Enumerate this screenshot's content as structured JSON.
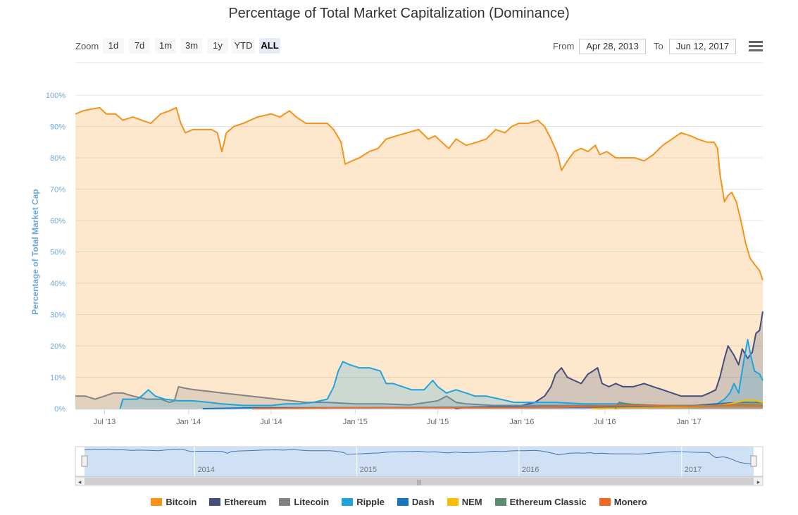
{
  "chart_data": {
    "type": "area",
    "title": "Percentage of Total Market Capitalization (Dominance)",
    "ylabel": "Percentage of Total Market Cap",
    "ylim": [
      0,
      100
    ],
    "yticks": [
      "0%",
      "10%",
      "20%",
      "30%",
      "40%",
      "50%",
      "60%",
      "70%",
      "80%",
      "90%",
      "100%"
    ],
    "xlim": [
      "2013-04-28",
      "2017-06-12"
    ],
    "xticks": [
      {
        "date": "2013-07-01",
        "label": "Jul '13"
      },
      {
        "date": "2014-01-01",
        "label": "Jan '14"
      },
      {
        "date": "2014-07-01",
        "label": "Jul '14"
      },
      {
        "date": "2015-01-01",
        "label": "Jan '15"
      },
      {
        "date": "2015-07-01",
        "label": "Jul '15"
      },
      {
        "date": "2016-01-01",
        "label": "Jan '16"
      },
      {
        "date": "2016-07-01",
        "label": "Jul '16"
      },
      {
        "date": "2017-01-01",
        "label": "Jan '17"
      }
    ],
    "grid": true,
    "legend_position": "bottom",
    "series": [
      {
        "name": "Bitcoin",
        "color": "#f7931a",
        "points": [
          [
            "2013-04-28",
            94
          ],
          [
            "2013-05-15",
            95
          ],
          [
            "2013-06-01",
            95.5
          ],
          [
            "2013-06-20",
            96
          ],
          [
            "2013-07-05",
            94
          ],
          [
            "2013-07-25",
            94
          ],
          [
            "2013-08-10",
            92
          ],
          [
            "2013-09-01",
            93
          ],
          [
            "2013-09-20",
            92
          ],
          [
            "2013-10-10",
            91
          ],
          [
            "2013-11-01",
            94
          ],
          [
            "2013-11-20",
            95
          ],
          [
            "2013-12-05",
            96
          ],
          [
            "2013-12-15",
            91
          ],
          [
            "2013-12-25",
            88
          ],
          [
            "2014-01-10",
            89
          ],
          [
            "2014-02-01",
            89
          ],
          [
            "2014-02-20",
            89
          ],
          [
            "2014-03-05",
            88
          ],
          [
            "2014-03-15",
            82
          ],
          [
            "2014-03-25",
            88
          ],
          [
            "2014-04-10",
            90
          ],
          [
            "2014-05-01",
            91
          ],
          [
            "2014-06-01",
            93
          ],
          [
            "2014-07-01",
            94
          ],
          [
            "2014-07-20",
            93
          ],
          [
            "2014-08-10",
            95
          ],
          [
            "2014-08-25",
            93
          ],
          [
            "2014-09-15",
            91
          ],
          [
            "2014-10-10",
            91
          ],
          [
            "2014-11-01",
            91
          ],
          [
            "2014-11-15",
            89
          ],
          [
            "2014-12-01",
            85
          ],
          [
            "2014-12-10",
            78
          ],
          [
            "2014-12-25",
            79
          ],
          [
            "2015-01-10",
            80
          ],
          [
            "2015-02-01",
            82
          ],
          [
            "2015-02-20",
            83
          ],
          [
            "2015-03-10",
            86
          ],
          [
            "2015-04-01",
            87
          ],
          [
            "2015-04-25",
            88
          ],
          [
            "2015-05-20",
            89
          ],
          [
            "2015-06-10",
            86
          ],
          [
            "2015-06-25",
            87
          ],
          [
            "2015-07-10",
            85
          ],
          [
            "2015-07-25",
            83
          ],
          [
            "2015-08-10",
            86
          ],
          [
            "2015-09-01",
            84
          ],
          [
            "2015-09-25",
            85
          ],
          [
            "2015-10-15",
            86
          ],
          [
            "2015-11-05",
            89
          ],
          [
            "2015-11-25",
            88
          ],
          [
            "2015-12-10",
            90
          ],
          [
            "2015-12-25",
            91
          ],
          [
            "2016-01-15",
            91
          ],
          [
            "2016-02-05",
            92
          ],
          [
            "2016-02-20",
            90
          ],
          [
            "2016-03-05",
            86
          ],
          [
            "2016-03-20",
            81
          ],
          [
            "2016-03-28",
            76
          ],
          [
            "2016-04-10",
            79
          ],
          [
            "2016-04-25",
            82
          ],
          [
            "2016-05-10",
            83
          ],
          [
            "2016-05-25",
            82
          ],
          [
            "2016-06-10",
            84
          ],
          [
            "2016-06-20",
            81
          ],
          [
            "2016-07-05",
            82
          ],
          [
            "2016-07-25",
            80
          ],
          [
            "2016-08-15",
            80
          ],
          [
            "2016-09-05",
            80
          ],
          [
            "2016-09-25",
            79
          ],
          [
            "2016-10-15",
            81
          ],
          [
            "2016-11-05",
            84
          ],
          [
            "2016-11-25",
            86
          ],
          [
            "2016-12-15",
            88
          ],
          [
            "2017-01-05",
            87
          ],
          [
            "2017-01-20",
            86
          ],
          [
            "2017-02-10",
            85
          ],
          [
            "2017-02-25",
            85
          ],
          [
            "2017-03-05",
            83
          ],
          [
            "2017-03-10",
            75
          ],
          [
            "2017-03-20",
            66
          ],
          [
            "2017-03-28",
            68
          ],
          [
            "2017-04-05",
            69
          ],
          [
            "2017-04-15",
            66
          ],
          [
            "2017-04-25",
            60
          ],
          [
            "2017-05-05",
            53
          ],
          [
            "2017-05-15",
            48
          ],
          [
            "2017-05-25",
            46
          ],
          [
            "2017-06-05",
            44
          ],
          [
            "2017-06-12",
            41
          ]
        ]
      },
      {
        "name": "Ethereum",
        "color": "#434e7b",
        "points": [
          [
            "2015-08-07",
            0
          ],
          [
            "2015-09-15",
            0.5
          ],
          [
            "2015-11-01",
            0.6
          ],
          [
            "2016-01-01",
            1
          ],
          [
            "2016-01-30",
            2
          ],
          [
            "2016-02-20",
            4
          ],
          [
            "2016-03-05",
            7
          ],
          [
            "2016-03-15",
            11
          ],
          [
            "2016-03-28",
            13
          ],
          [
            "2016-04-10",
            10
          ],
          [
            "2016-04-25",
            9
          ],
          [
            "2016-05-10",
            8
          ],
          [
            "2016-05-25",
            11
          ],
          [
            "2016-06-05",
            12
          ],
          [
            "2016-06-15",
            13
          ],
          [
            "2016-06-25",
            8
          ],
          [
            "2016-07-10",
            7
          ],
          [
            "2016-07-25",
            8
          ],
          [
            "2016-08-10",
            7
          ],
          [
            "2016-09-01",
            7
          ],
          [
            "2016-09-25",
            8
          ],
          [
            "2016-10-15",
            7
          ],
          [
            "2016-11-05",
            6
          ],
          [
            "2016-11-25",
            5
          ],
          [
            "2016-12-15",
            4
          ],
          [
            "2017-01-10",
            4
          ],
          [
            "2017-01-30",
            4
          ],
          [
            "2017-02-15",
            5
          ],
          [
            "2017-03-01",
            6
          ],
          [
            "2017-03-10",
            10
          ],
          [
            "2017-03-20",
            16
          ],
          [
            "2017-03-28",
            20
          ],
          [
            "2017-04-10",
            17
          ],
          [
            "2017-04-20",
            14
          ],
          [
            "2017-04-28",
            19
          ],
          [
            "2017-05-10",
            16
          ],
          [
            "2017-05-20",
            18
          ],
          [
            "2017-05-28",
            24
          ],
          [
            "2017-06-05",
            25
          ],
          [
            "2017-06-12",
            31
          ]
        ]
      },
      {
        "name": "Litecoin",
        "color": "#838383",
        "points": [
          [
            "2013-04-28",
            4
          ],
          [
            "2013-05-20",
            4
          ],
          [
            "2013-06-10",
            3
          ],
          [
            "2013-07-01",
            4
          ],
          [
            "2013-07-20",
            5
          ],
          [
            "2013-08-10",
            5
          ],
          [
            "2013-09-01",
            4
          ],
          [
            "2013-10-01",
            3
          ],
          [
            "2013-11-01",
            3
          ],
          [
            "2013-11-20",
            2
          ],
          [
            "2013-12-01",
            2.5
          ],
          [
            "2013-12-10",
            7
          ],
          [
            "2013-12-25",
            6.5
          ],
          [
            "2014-01-15",
            6
          ],
          [
            "2014-02-15",
            5.5
          ],
          [
            "2014-03-15",
            5
          ],
          [
            "2014-04-15",
            4.5
          ],
          [
            "2014-05-15",
            4
          ],
          [
            "2014-06-15",
            3.5
          ],
          [
            "2014-07-15",
            3
          ],
          [
            "2014-08-15",
            2.5
          ],
          [
            "2014-09-15",
            2
          ],
          [
            "2014-11-01",
            2
          ],
          [
            "2015-01-01",
            1.5
          ],
          [
            "2015-03-01",
            1.5
          ],
          [
            "2015-05-01",
            1.2
          ],
          [
            "2015-07-01",
            2.5
          ],
          [
            "2015-07-20",
            4
          ],
          [
            "2015-08-10",
            2
          ],
          [
            "2015-09-01",
            1.5
          ],
          [
            "2015-11-01",
            1
          ],
          [
            "2016-01-01",
            1
          ],
          [
            "2016-06-01",
            1
          ],
          [
            "2016-10-01",
            0.8
          ],
          [
            "2017-01-01",
            0.8
          ],
          [
            "2017-03-01",
            1
          ],
          [
            "2017-04-01",
            1.5
          ],
          [
            "2017-05-01",
            2
          ],
          [
            "2017-06-12",
            1.8
          ]
        ]
      },
      {
        "name": "Ripple",
        "color": "#1fa4db",
        "points": [
          [
            "2013-08-04",
            0
          ],
          [
            "2013-08-10",
            3
          ],
          [
            "2013-09-10",
            3
          ],
          [
            "2013-09-20",
            4
          ],
          [
            "2013-10-05",
            6
          ],
          [
            "2013-10-20",
            4
          ],
          [
            "2013-11-10",
            3
          ],
          [
            "2013-12-10",
            2.5
          ],
          [
            "2014-01-10",
            2.5
          ],
          [
            "2014-02-15",
            2
          ],
          [
            "2014-03-15",
            1.5
          ],
          [
            "2014-05-01",
            1
          ],
          [
            "2014-06-01",
            1
          ],
          [
            "2014-07-01",
            1
          ],
          [
            "2014-08-01",
            1.5
          ],
          [
            "2014-09-01",
            1.5
          ],
          [
            "2014-10-01",
            2
          ],
          [
            "2014-11-01",
            3
          ],
          [
            "2014-11-15",
            7
          ],
          [
            "2014-11-25",
            12
          ],
          [
            "2014-12-05",
            15
          ],
          [
            "2014-12-20",
            14
          ],
          [
            "2015-01-10",
            13
          ],
          [
            "2015-02-01",
            13
          ],
          [
            "2015-02-25",
            12
          ],
          [
            "2015-03-10",
            8
          ],
          [
            "2015-03-25",
            8
          ],
          [
            "2015-04-15",
            7
          ],
          [
            "2015-05-05",
            6
          ],
          [
            "2015-06-01",
            6
          ],
          [
            "2015-06-20",
            9
          ],
          [
            "2015-07-01",
            7
          ],
          [
            "2015-07-20",
            5
          ],
          [
            "2015-08-10",
            6
          ],
          [
            "2015-09-01",
            5
          ],
          [
            "2015-09-20",
            4
          ],
          [
            "2015-10-15",
            4
          ],
          [
            "2015-11-15",
            3
          ],
          [
            "2015-12-15",
            2
          ],
          [
            "2016-01-15",
            2
          ],
          [
            "2016-03-15",
            2
          ],
          [
            "2016-05-15",
            1.5
          ],
          [
            "2016-08-01",
            1.5
          ],
          [
            "2016-11-01",
            1
          ],
          [
            "2017-01-15",
            1
          ],
          [
            "2017-03-01",
            1.2
          ],
          [
            "2017-03-20",
            3
          ],
          [
            "2017-04-01",
            5
          ],
          [
            "2017-04-10",
            8
          ],
          [
            "2017-04-20",
            5
          ],
          [
            "2017-05-01",
            15
          ],
          [
            "2017-05-10",
            22
          ],
          [
            "2017-05-18",
            16
          ],
          [
            "2017-05-25",
            12
          ],
          [
            "2017-06-05",
            11
          ],
          [
            "2017-06-12",
            9
          ]
        ]
      },
      {
        "name": "Dash",
        "color": "#1c75bc",
        "points": [
          [
            "2014-02-01",
            0
          ],
          [
            "2014-06-01",
            0.3
          ],
          [
            "2015-01-01",
            0.3
          ],
          [
            "2016-01-01",
            0.5
          ],
          [
            "2016-06-01",
            0.5
          ],
          [
            "2017-01-01",
            0.8
          ],
          [
            "2017-03-01",
            1.5
          ],
          [
            "2017-04-01",
            1.8
          ],
          [
            "2017-05-01",
            2
          ],
          [
            "2017-06-12",
            2
          ]
        ]
      },
      {
        "name": "NEM",
        "color": "#fabe00",
        "points": [
          [
            "2016-06-01",
            0
          ],
          [
            "2016-10-01",
            0.3
          ],
          [
            "2017-01-01",
            0.5
          ],
          [
            "2017-03-01",
            1
          ],
          [
            "2017-04-01",
            1.5
          ],
          [
            "2017-05-01",
            2.5
          ],
          [
            "2017-05-20",
            2.8
          ],
          [
            "2017-06-12",
            2
          ]
        ]
      },
      {
        "name": "Ethereum Classic",
        "color": "#5b8c6f",
        "points": [
          [
            "2016-07-24",
            0
          ],
          [
            "2016-08-01",
            2
          ],
          [
            "2016-08-20",
            1.5
          ],
          [
            "2016-10-01",
            1
          ],
          [
            "2017-01-01",
            0.8
          ],
          [
            "2017-03-01",
            1
          ],
          [
            "2017-05-01",
            1.2
          ],
          [
            "2017-06-12",
            1
          ]
        ]
      },
      {
        "name": "Monero",
        "color": "#f26822",
        "points": [
          [
            "2014-05-21",
            0
          ],
          [
            "2015-01-01",
            0.3
          ],
          [
            "2016-01-01",
            0.3
          ],
          [
            "2016-08-01",
            1
          ],
          [
            "2016-10-01",
            1
          ],
          [
            "2017-01-01",
            0.8
          ],
          [
            "2017-04-01",
            1
          ],
          [
            "2017-06-12",
            0.9
          ]
        ]
      }
    ],
    "navigator": {
      "labels": [
        "2014",
        "2015",
        "2016",
        "2017"
      ],
      "label_dates": [
        "2014-01-01",
        "2015-01-01",
        "2016-01-01",
        "2017-01-01"
      ]
    }
  },
  "controls": {
    "zoom_label": "Zoom",
    "buttons": [
      "1d",
      "7d",
      "1m",
      "3m",
      "1y",
      "YTD",
      "ALL"
    ],
    "active_button": "ALL",
    "from_label": "From",
    "from_value": "Apr 28, 2013",
    "to_label": "To",
    "to_value": "Jun 12, 2017",
    "menu_icon": "hamburger-menu-icon"
  }
}
